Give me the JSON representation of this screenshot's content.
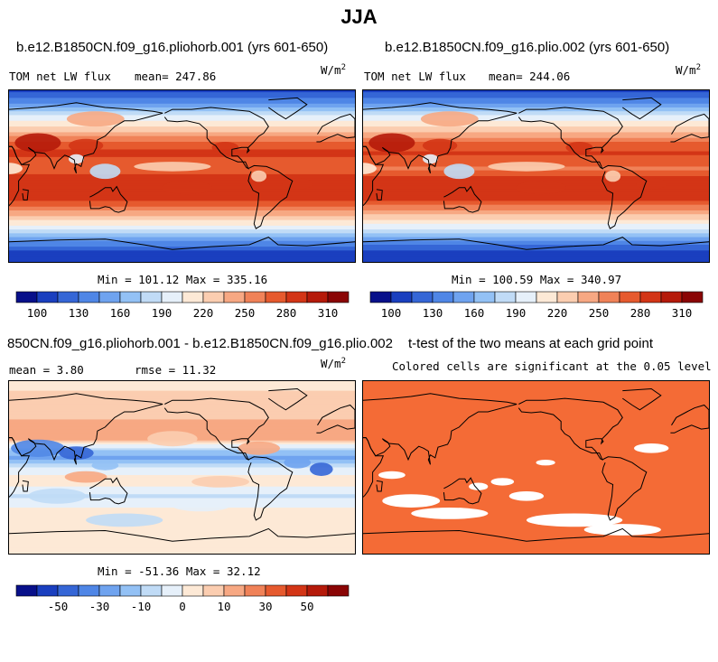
{
  "figure_title": "JJA",
  "colors": {
    "scale": [
      "#08108a",
      "#1a3fbf",
      "#3566d6",
      "#4f86e6",
      "#6fa3ef",
      "#93c1f5",
      "#c0dbf6",
      "#e6f0fa",
      "#fde9d6",
      "#fbcdb0",
      "#f7a883",
      "#f08258",
      "#e65a2e",
      "#d33516",
      "#b51a0a",
      "#8a0505"
    ],
    "significant": "#f46b36",
    "not_significant": "#ffffff",
    "coast": "#000000"
  },
  "panels": [
    {
      "title": "b.e12.B1850CN.f09_g16.pliohorb.001 (yrs 601-650)",
      "variable": "TOM net LW flux",
      "mean_text": "mean= 247.86",
      "units_base": "W/m",
      "units_exp": "2",
      "stats": "Min = 101.12 Max = 335.16"
    },
    {
      "title": "b.e12.B1850CN.f09_g16.plio.002 (yrs 601-650)",
      "variable": "TOM net LW flux",
      "mean_text": "mean= 244.06",
      "units_base": "W/m",
      "units_exp": "2",
      "stats": "Min = 100.59 Max = 340.97"
    },
    {
      "title": "850CN.f09_g16.pliohorb.001 - b.e12.B1850CN.f09_g16.plio.002",
      "mean_text": "mean =   3.80",
      "rmse_text": "rmse =  11.32",
      "units_base": "W/m",
      "units_exp": "2",
      "stats": "Min = -51.36 Max =  32.12"
    },
    {
      "title": "t-test of the two means at each grid point",
      "subtitle": "Colored cells are significant at the 0.05 level"
    }
  ],
  "chart_data": [
    {
      "type": "heatmap",
      "title": "b.e12.B1850CN.f09_g16.pliohorb.001 (yrs 601-650)",
      "variable": "TOM net LW flux",
      "units": "W/m^2",
      "mean": 247.86,
      "min": 101.12,
      "max": 335.16,
      "colorbar": {
        "levels": [
          100,
          115,
          130,
          145,
          160,
          175,
          190,
          205,
          220,
          235,
          250,
          265,
          280,
          295,
          310
        ],
        "tick_labels": [
          "100",
          "130",
          "160",
          "190",
          "220",
          "250",
          "280",
          "310"
        ]
      },
      "zonal_profile": [
        [
          90,
          110
        ],
        [
          75,
          150
        ],
        [
          65,
          190
        ],
        [
          55,
          215
        ],
        [
          45,
          240
        ],
        [
          35,
          270
        ],
        [
          25,
          285
        ],
        [
          15,
          275
        ],
        [
          8,
          265
        ],
        [
          0,
          285
        ],
        [
          -10,
          295
        ],
        [
          -20,
          295
        ],
        [
          -30,
          270
        ],
        [
          -40,
          240
        ],
        [
          -50,
          210
        ],
        [
          -60,
          175
        ],
        [
          -70,
          140
        ],
        [
          -80,
          112
        ],
        [
          -90,
          105
        ]
      ]
    },
    {
      "type": "heatmap",
      "title": "b.e12.B1850CN.f09_g16.plio.002 (yrs 601-650)",
      "variable": "TOM net LW flux",
      "units": "W/m^2",
      "mean": 244.06,
      "min": 100.59,
      "max": 340.97,
      "colorbar": {
        "levels": [
          100,
          115,
          130,
          145,
          160,
          175,
          190,
          205,
          220,
          235,
          250,
          265,
          280,
          295,
          310
        ],
        "tick_labels": [
          "100",
          "130",
          "160",
          "190",
          "220",
          "250",
          "280",
          "310"
        ]
      },
      "zonal_profile": [
        [
          90,
          110
        ],
        [
          75,
          150
        ],
        [
          65,
          190
        ],
        [
          55,
          215
        ],
        [
          45,
          238
        ],
        [
          35,
          268
        ],
        [
          25,
          283
        ],
        [
          15,
          272
        ],
        [
          8,
          262
        ],
        [
          0,
          282
        ],
        [
          -10,
          293
        ],
        [
          -20,
          293
        ],
        [
          -30,
          268
        ],
        [
          -40,
          238
        ],
        [
          -50,
          208
        ],
        [
          -60,
          173
        ],
        [
          -70,
          138
        ],
        [
          -80,
          110
        ],
        [
          -90,
          104
        ]
      ]
    },
    {
      "type": "heatmap",
      "title": "850CN.f09_g16.pliohorb.001 - b.e12.B1850CN.f09_g16.plio.002",
      "units": "W/m^2",
      "mean": 3.8,
      "rmse": 11.32,
      "min": -51.36,
      "max": 32.12,
      "colorbar": {
        "levels": [
          -60,
          -50,
          -40,
          -30,
          -20,
          -10,
          -5,
          0,
          5,
          10,
          20,
          30,
          40,
          50,
          60
        ],
        "tick_labels": [
          "-50",
          "-30",
          "-10",
          "0",
          "10",
          "30",
          "50"
        ]
      },
      "zonal_profile": [
        [
          90,
          4
        ],
        [
          70,
          6
        ],
        [
          50,
          10
        ],
        [
          30,
          12
        ],
        [
          20,
          -6
        ],
        [
          10,
          -22
        ],
        [
          0,
          -4
        ],
        [
          -15,
          4
        ],
        [
          -30,
          -6
        ],
        [
          -45,
          2
        ],
        [
          -60,
          3
        ],
        [
          -90,
          2
        ]
      ]
    },
    {
      "type": "heatmap",
      "title": "t-test of the two means at each grid point",
      "subtitle": "Colored cells are significant at the 0.05 level",
      "significance_level": 0.05
    }
  ]
}
